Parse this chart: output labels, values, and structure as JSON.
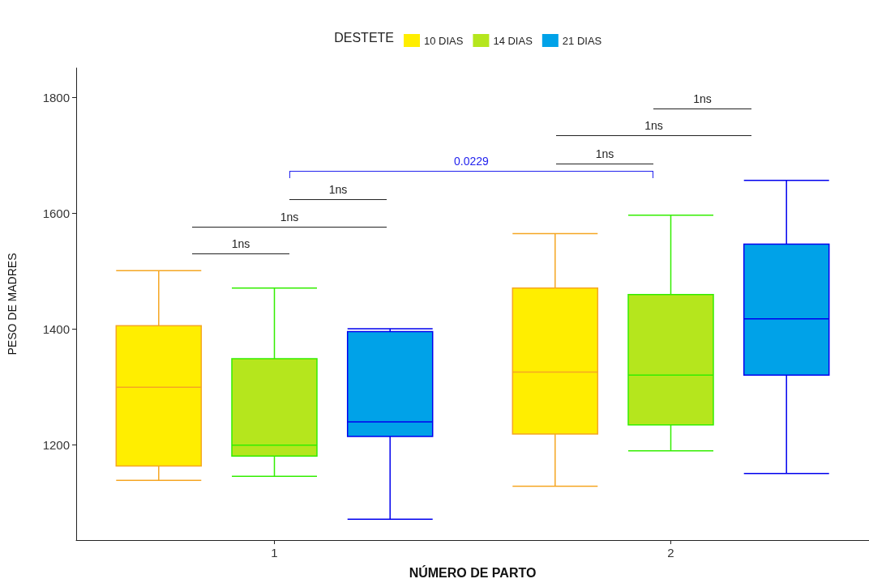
{
  "chart_data": {
    "type": "box",
    "xlabel": "NÚMERO DE PARTO",
    "ylabel": "PESO DE MADRES",
    "legend_title": "DESTETE",
    "legend": "top",
    "grid": false,
    "categories": [
      "1",
      "2"
    ],
    "ylim": [
      1036,
      1851
    ],
    "yticks": [
      1200,
      1400,
      1600,
      1800
    ],
    "series": [
      {
        "name": "10 DIAS",
        "color": "#ffee00",
        "boxes": [
          {
            "low": 1139,
            "q1": 1164,
            "median": 1300,
            "q3": 1406,
            "high": 1501
          },
          {
            "low": 1129,
            "q1": 1219,
            "median": 1326,
            "q3": 1471,
            "high": 1565
          }
        ]
      },
      {
        "name": "14 DIAS",
        "color": "#b5e61d",
        "boxes": [
          {
            "low": 1146,
            "q1": 1181,
            "median": 1200,
            "q3": 1349,
            "high": 1471
          },
          {
            "low": 1190,
            "q1": 1235,
            "median": 1321,
            "q3": 1460,
            "high": 1597
          }
        ]
      },
      {
        "name": "21 DIAS",
        "color": "#00a2e8",
        "boxes": [
          {
            "low": 1072,
            "q1": 1215,
            "median": 1240,
            "q3": 1396,
            "high": 1401
          },
          {
            "low": 1151,
            "q1": 1321,
            "median": 1418,
            "q3": 1547,
            "high": 1657
          }
        ]
      }
    ],
    "annotations": [
      "1ns",
      "1ns",
      "1ns",
      "0.0229",
      "1ns",
      "1ns",
      "1ns"
    ]
  }
}
